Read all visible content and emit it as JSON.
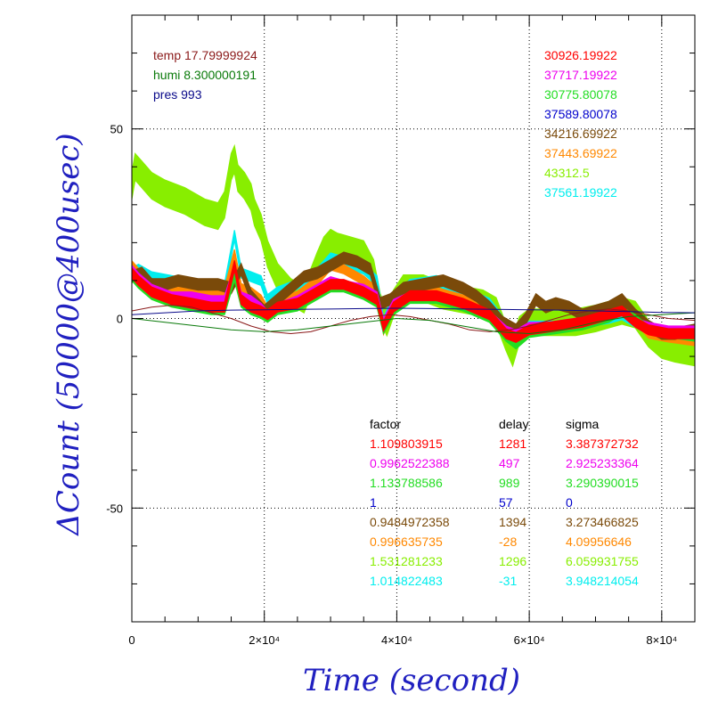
{
  "chart_data": {
    "type": "line",
    "xlabel": "Time (second)",
    "ylabel": "ΔCount (50000@400usec)",
    "xlim": [
      0,
      85000
    ],
    "ylim": [
      -80,
      80
    ],
    "x_ticks": [
      {
        "value": 0,
        "label": "0"
      },
      {
        "value": 20000,
        "label": "2×10⁴"
      },
      {
        "value": 40000,
        "label": "4×10⁴"
      },
      {
        "value": 60000,
        "label": "6×10⁴"
      },
      {
        "value": 80000,
        "label": "8×10⁴"
      }
    ],
    "y_ticks": [
      {
        "value": 50,
        "label": "50"
      },
      {
        "value": 0,
        "label": "0"
      },
      {
        "value": -50,
        "label": "-50"
      }
    ],
    "grid": "dotted",
    "env": [
      {
        "label": "temp 17.79999924",
        "color": "#8b1a1a"
      },
      {
        "label": "humi 8.300000191",
        "color": "#0a7a0a"
      },
      {
        "label": "pres 993",
        "color": "#0a0a8a"
      }
    ],
    "right_values": [
      {
        "text": "30926.19922",
        "color": "#ff0000"
      },
      {
        "text": "37717.19922",
        "color": "#ee00ee"
      },
      {
        "text": "30775.80078",
        "color": "#22dd22"
      },
      {
        "text": "37589.80078",
        "color": "#0000cc"
      },
      {
        "text": "34216.69922",
        "color": "#7a4a0a"
      },
      {
        "text": "37443.69922",
        "color": "#ff8800"
      },
      {
        "text": "43312.5",
        "color": "#88ee00"
      },
      {
        "text": "37561.19922",
        "color": "#00eeee"
      }
    ],
    "stats_headers": [
      "factor",
      "delay",
      "sigma"
    ],
    "stats_header_color": "#000000",
    "stats": [
      {
        "factor": "1.109803915",
        "delay": "1281",
        "sigma": "3.387372732",
        "color": "#ff0000"
      },
      {
        "factor": "0.9962522388",
        "delay": "497",
        "sigma": "2.925233364",
        "color": "#ee00ee"
      },
      {
        "factor": "1.133788586",
        "delay": "989",
        "sigma": "3.290390015",
        "color": "#22dd22"
      },
      {
        "factor": "1",
        "delay": "57",
        "sigma": "0",
        "color": "#0000cc"
      },
      {
        "factor": "0.9484972358",
        "delay": "1394",
        "sigma": "3.273466825",
        "color": "#7a4a0a"
      },
      {
        "factor": "0.996635735",
        "delay": "-28",
        "sigma": "4.09956646",
        "color": "#ff8800"
      },
      {
        "factor": "1.531281233",
        "delay": "1296",
        "sigma": "6.059931755",
        "color": "#88ee00"
      },
      {
        "factor": "1.014822483",
        "delay": "-31",
        "sigma": "3.948214054",
        "color": "#00eeee"
      }
    ],
    "series": [
      {
        "color": "#88ee00",
        "band": 3.5,
        "x": [
          0,
          500,
          1500,
          3000,
          5000,
          8000,
          11000,
          13000,
          14000,
          15000,
          15500,
          16000,
          17000,
          18000,
          18500,
          19500,
          20500,
          22000,
          24000,
          26000,
          28000,
          29000,
          30000,
          31000,
          33000,
          35000,
          36500,
          37500,
          38500,
          39500,
          41000,
          44000,
          47000,
          50000,
          53000,
          55000,
          56500,
          57500,
          58500,
          60000,
          63000,
          67000,
          70000,
          72000,
          74000,
          76000,
          78000,
          80000,
          82000,
          85000
        ],
        "y": [
          35,
          40,
          38,
          35,
          33,
          31,
          28,
          27,
          30,
          40,
          42,
          37,
          35,
          32,
          28,
          24,
          17,
          11,
          7,
          5,
          14,
          18,
          20,
          19,
          18,
          17,
          12,
          3,
          -1,
          4,
          8,
          8,
          6,
          5,
          4,
          2,
          -5,
          -9,
          -3,
          -1,
          -1,
          -1,
          0,
          1,
          2,
          1,
          -4,
          -7,
          -8,
          -9
        ]
      },
      {
        "color": "#00eeee",
        "band": 1.3,
        "x": [
          0,
          1000,
          3000,
          6000,
          9000,
          12000,
          14000,
          15500,
          16500,
          18000,
          19500,
          20500,
          22000,
          25000,
          28000,
          30000,
          32000,
          35000,
          37000,
          38000,
          39500,
          42000,
          46000,
          50000,
          54000,
          56500,
          58000,
          60000,
          64000,
          68000,
          72000,
          74000,
          76000,
          78000,
          81000,
          85000
        ],
        "y": [
          12,
          13,
          11,
          10,
          9,
          8,
          8,
          22,
          12,
          11,
          10,
          5,
          7,
          9,
          12,
          16,
          15,
          13,
          10,
          -1,
          5,
          9,
          10,
          7,
          4,
          -2,
          -5,
          -2,
          -2,
          -1,
          0,
          1,
          -1,
          -3,
          -4,
          -5
        ]
      },
      {
        "color": "#ff8800",
        "band": 1.2,
        "x": [
          0,
          1000,
          3000,
          6000,
          9000,
          12000,
          14000,
          15500,
          16500,
          18000,
          19500,
          20500,
          22000,
          25000,
          28000,
          30000,
          32000,
          35000,
          37000,
          38000,
          39500,
          42000,
          46000,
          50000,
          54000,
          56500,
          58000,
          60000,
          64000,
          68000,
          72000,
          74000,
          76000,
          78000,
          81000,
          85000
        ],
        "y": [
          14,
          12,
          9,
          8,
          7,
          6,
          7,
          17,
          8,
          7,
          5,
          2,
          4,
          6,
          10,
          14,
          13,
          10,
          7,
          -3,
          3,
          7,
          7,
          5,
          2,
          -4,
          -6,
          -3,
          -2,
          -1,
          1,
          3,
          0,
          -4,
          -5,
          -6
        ]
      },
      {
        "color": "#7a4a0a",
        "band": 1.5,
        "x": [
          0,
          1500,
          3000,
          5000,
          7000,
          10000,
          13000,
          15000,
          16500,
          18000,
          20000,
          22000,
          24000,
          26000,
          28000,
          30000,
          32000,
          34000,
          36000,
          37500,
          39000,
          41000,
          44000,
          47000,
          50000,
          52000,
          54000,
          56000,
          58000,
          59500,
          61000,
          62500,
          64000,
          66000,
          68000,
          70000,
          72000,
          74000,
          76000,
          78000,
          80000,
          82000,
          85000
        ],
        "y": [
          11,
          12,
          9,
          9,
          10,
          9,
          9,
          8,
          13,
          6,
          2,
          5,
          8,
          11,
          12,
          14,
          16,
          15,
          13,
          4,
          5,
          8,
          9,
          10,
          8,
          6,
          3,
          -1,
          -3,
          0,
          5,
          3,
          4,
          3,
          1,
          2,
          3,
          5,
          1,
          -2,
          -4,
          -4,
          -3
        ]
      },
      {
        "color": "#ee00ee",
        "band": 1.0,
        "x": [
          0,
          1000,
          3000,
          6000,
          9000,
          12000,
          14000,
          15500,
          16500,
          18000,
          19500,
          20500,
          22000,
          25000,
          28000,
          30000,
          32000,
          35000,
          37000,
          38000,
          39500,
          42000,
          46000,
          50000,
          54000,
          56500,
          58000,
          60000,
          64000,
          68000,
          72000,
          74000,
          76000,
          78000,
          81000,
          85000
        ],
        "y": [
          13,
          11,
          8,
          6,
          6,
          5,
          5,
          13,
          6,
          5,
          3,
          1,
          3,
          5,
          8,
          10,
          9,
          8,
          6,
          -1,
          4,
          6,
          6,
          4,
          1,
          -3,
          -4,
          -2,
          -2,
          -1,
          0,
          2,
          -1,
          -2,
          -3,
          -3
        ]
      },
      {
        "color": "#22dd22",
        "band": 1.0,
        "x": [
          0,
          1000,
          3000,
          6000,
          9000,
          12000,
          14000,
          15500,
          16500,
          18000,
          19500,
          20500,
          22000,
          25000,
          28000,
          30000,
          32000,
          35000,
          37000,
          38000,
          39500,
          42000,
          46000,
          50000,
          54000,
          56500,
          58000,
          60000,
          64000,
          68000,
          72000,
          74000,
          76000,
          78000,
          81000,
          85000
        ],
        "y": [
          11,
          9,
          6,
          4,
          3,
          2,
          2,
          11,
          4,
          2,
          1,
          0,
          2,
          3,
          6,
          8,
          8,
          6,
          4,
          -3,
          2,
          5,
          5,
          3,
          0,
          -5,
          -7,
          -4,
          -3,
          -2,
          0,
          2,
          0,
          -3,
          -4,
          -5
        ]
      },
      {
        "color": "#ff0000",
        "band": 1.3,
        "x": [
          0,
          1000,
          3000,
          6000,
          9000,
          12000,
          14000,
          15500,
          16500,
          18000,
          19500,
          20500,
          22000,
          25000,
          28000,
          30000,
          32000,
          35000,
          37000,
          38000,
          39500,
          42000,
          46000,
          50000,
          54000,
          56500,
          58000,
          60000,
          64000,
          68000,
          72000,
          74000,
          76000,
          78000,
          81000,
          85000
        ],
        "y": [
          12,
          10,
          7,
          5,
          4,
          3,
          3,
          14,
          5,
          3,
          2,
          1,
          3,
          4,
          7,
          9,
          9,
          7,
          5,
          -2,
          3,
          6,
          6,
          4,
          1,
          -4,
          -5,
          -3,
          -2,
          -1,
          1,
          2,
          -1,
          -3,
          -4,
          -4
        ]
      },
      {
        "color": "#8b1a1a",
        "band": 0,
        "x": [
          0,
          3000,
          6000,
          9000,
          12000,
          15000,
          18000,
          21000,
          24000,
          27000,
          30000,
          33000,
          36000,
          39000,
          42000,
          45000,
          48000,
          51000,
          54000,
          57000,
          60000,
          63000,
          66000,
          69000,
          72000,
          75000,
          78000,
          81000,
          85000
        ],
        "y": [
          2,
          3,
          3.5,
          3,
          1.5,
          0,
          -2,
          -3.5,
          -4,
          -3.5,
          -2,
          -0.5,
          0.5,
          1,
          0.5,
          -0.5,
          -1.5,
          -3,
          -3.5,
          -3,
          -2,
          -0.5,
          1,
          2,
          2.5,
          2,
          1,
          0,
          -0.5
        ]
      },
      {
        "color": "#0a7a0a",
        "band": 0,
        "x": [
          0,
          5000,
          10000,
          15000,
          20000,
          25000,
          30000,
          35000,
          40000,
          45000,
          50000,
          55000,
          60000,
          65000,
          70000,
          75000,
          80000,
          85000
        ],
        "y": [
          0,
          -1,
          -2,
          -3,
          -3.5,
          -3,
          -2,
          -1,
          0,
          -0.5,
          -2,
          -3.5,
          -4,
          -3,
          -1,
          0.5,
          1,
          1.5
        ]
      },
      {
        "color": "#0a0a8a",
        "band": 0,
        "x": [
          0,
          5000,
          10000,
          15000,
          20000,
          25000,
          30000,
          35000,
          40000,
          45000,
          50000,
          55000,
          60000,
          65000,
          70000,
          75000,
          80000,
          85000
        ],
        "y": [
          1,
          1.5,
          2,
          2.2,
          2.3,
          2.4,
          2.5,
          2.6,
          2.7,
          2.6,
          2.5,
          2.4,
          2.3,
          2.2,
          2,
          1.8,
          1.6,
          1.5
        ]
      }
    ]
  }
}
